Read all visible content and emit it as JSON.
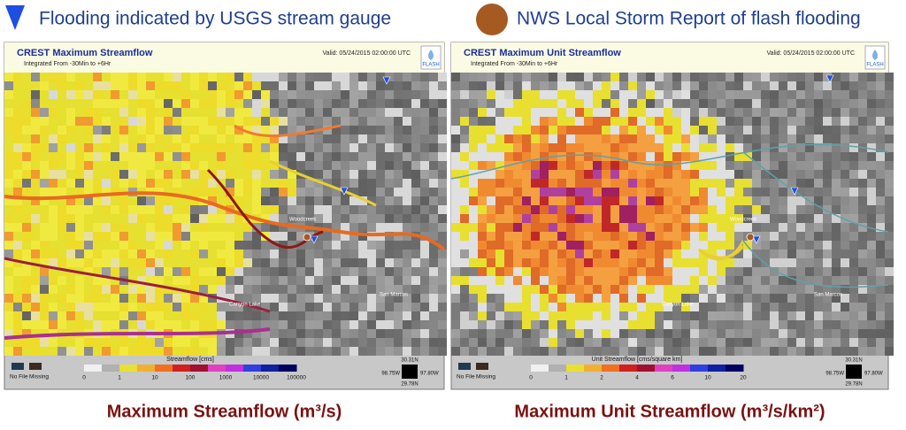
{
  "legend": {
    "gauge": "Flooding indicated by USGS stream gauge",
    "report": "NWS Local Storm Report of flash flooding"
  },
  "panels": [
    {
      "title": "CREST Maximum Streamflow",
      "subtitle": "Integrated From -30Min to +6Hr",
      "valid": "Valid: 05/24/2015 02:00:00 UTC",
      "logo": "FLASH",
      "colorbar_title": "Streamflow [cms]",
      "colorbar_ticks": [
        "0",
        "1",
        "10",
        "100",
        "1000",
        "10000",
        "100000"
      ],
      "no_file": "No File",
      "missing": "Missing",
      "coords": {
        "lat_top": "30.31N",
        "lon_left": "98.75W",
        "lon_right": "97.80W",
        "lat_bottom": "29.78N"
      },
      "places": [
        "Woodcreek",
        "San Marcos",
        "Canyon Lake"
      ],
      "caption": "Maximum Streamflow (m³/s)"
    },
    {
      "title": "CREST Maximum Unit Streamflow",
      "subtitle": "Integrated From -30Min to +6Hr",
      "valid": "Valid: 05/24/2015 02:00:00 UTC",
      "logo": "FLASH",
      "colorbar_title": "Unit Streamflow [cms/square km]",
      "colorbar_ticks": [
        "0",
        "1",
        "2",
        "4",
        "6",
        "10",
        "20"
      ],
      "no_file": "No File",
      "missing": "Missing",
      "coords": {
        "lat_top": "30.31N",
        "lon_left": "98.75W",
        "lon_right": "97.80W",
        "lat_bottom": "29.78N"
      },
      "places": [
        "Woodcreek",
        "San Marcos",
        "Canyon Lake"
      ],
      "caption": "Maximum Unit Streamflow (m³/s/km²)"
    }
  ]
}
